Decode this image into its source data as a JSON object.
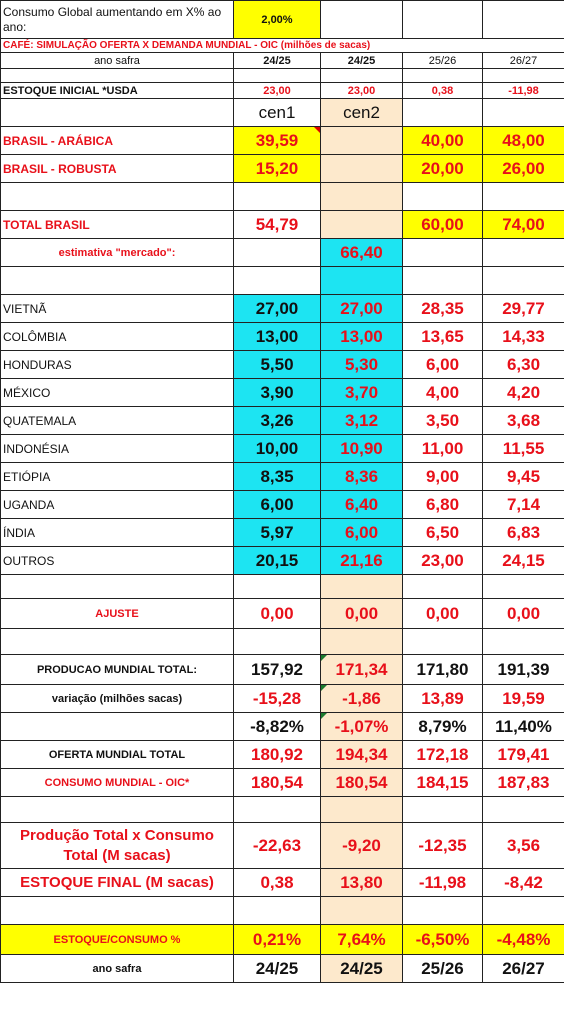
{
  "header": {
    "growth_label": "Consumo Global aumentando em X% ao ano:",
    "growth_value": "2,00%",
    "title": "CAFÉ: SIMULAÇÃO OFERTA X DEMANDA MUNDIAL  - OIC (milhões de sacas)",
    "year_label": "ano safra",
    "years": [
      "24/25",
      "24/25",
      "25/26",
      "26/27"
    ]
  },
  "estoque_inicial": {
    "label": "ESTOQUE INICIAL *USDA",
    "values": [
      "23,00",
      "23,00",
      "0,38",
      "-11,98"
    ]
  },
  "scenarios": [
    "cen1",
    "cen2"
  ],
  "brasil": {
    "arabica": {
      "label": "BRASIL - ARÁBICA",
      "values": [
        "39,59",
        "",
        "40,00",
        "48,00"
      ]
    },
    "robusta": {
      "label": "BRASIL - ROBUSTA",
      "values": [
        "15,20",
        "",
        "20,00",
        "26,00"
      ]
    },
    "total": {
      "label": "TOTAL BRASIL",
      "values": [
        "54,79",
        "",
        "60,00",
        "74,00"
      ]
    },
    "mercado": {
      "label": "estimativa \"mercado\":",
      "value": "66,40"
    }
  },
  "countries": [
    {
      "name": "VIETNÃ",
      "values": [
        "27,00",
        "27,00",
        "28,35",
        "29,77"
      ]
    },
    {
      "name": "COLÔMBIA",
      "values": [
        "13,00",
        "13,00",
        "13,65",
        "14,33"
      ]
    },
    {
      "name": "HONDURAS",
      "values": [
        "5,50",
        "5,30",
        "6,00",
        "6,30"
      ]
    },
    {
      "name": "MÉXICO",
      "values": [
        "3,90",
        "3,70",
        "4,00",
        "4,20"
      ]
    },
    {
      "name": "QUATEMALA",
      "values": [
        "3,26",
        "3,12",
        "3,50",
        "3,68"
      ]
    },
    {
      "name": "INDONÉSIA",
      "values": [
        "10,00",
        "10,90",
        "11,00",
        "11,55"
      ]
    },
    {
      "name": "ETIÓPIA",
      "values": [
        "8,35",
        "8,36",
        "9,00",
        "9,45"
      ]
    },
    {
      "name": "UGANDA",
      "values": [
        "6,00",
        "6,40",
        "6,80",
        "7,14"
      ]
    },
    {
      "name": "ÍNDIA",
      "values": [
        "5,97",
        "6,00",
        "6,50",
        "6,83"
      ]
    },
    {
      "name": "OUTROS",
      "values": [
        "20,15",
        "21,16",
        "23,00",
        "24,15"
      ]
    }
  ],
  "ajuste": {
    "label": "AJUSTE",
    "values": [
      "0,00",
      "0,00",
      "0,00",
      "0,00"
    ]
  },
  "producao": {
    "label": "PRODUCAO MUNDIAL TOTAL:",
    "values": [
      "157,92",
      "171,34",
      "171,80",
      "191,39"
    ]
  },
  "variacao": {
    "label": "variação (milhões sacas)",
    "values": [
      "-15,28",
      "-1,86",
      "13,89",
      "19,59"
    ]
  },
  "variacao_pct": {
    "values": [
      "-8,82%",
      "-1,07%",
      "8,79%",
      "11,40%"
    ]
  },
  "oferta": {
    "label": "OFERTA MUNDIAL TOTAL",
    "values": [
      "180,92",
      "194,34",
      "172,18",
      "179,41"
    ]
  },
  "consumo": {
    "label": "CONSUMO MUNDIAL - OIC*",
    "values": [
      "180,54",
      "180,54",
      "184,15",
      "187,83"
    ]
  },
  "prod_x_consumo": {
    "label": "Produção Total x Consumo Total (M sacas)",
    "values": [
      "-22,63",
      "-9,20",
      "-12,35",
      "3,56"
    ]
  },
  "estoque_final": {
    "label": "ESTOQUE FINAL (M sacas)",
    "values": [
      "0,38",
      "13,80",
      "-11,98",
      "-8,42"
    ]
  },
  "estoque_consumo": {
    "label": "ESTOQUE/CONSUMO %",
    "values": [
      "0,21%",
      "7,64%",
      "-6,50%",
      "-4,48%"
    ]
  },
  "footer": {
    "year_label": "ano safra",
    "years": [
      "24/25",
      "24/25",
      "25/26",
      "26/27"
    ]
  },
  "colors": {
    "red": "#e8101a",
    "yellow": "#ffff00",
    "cyan": "#1de4f2",
    "tan": "#fde9cc"
  }
}
